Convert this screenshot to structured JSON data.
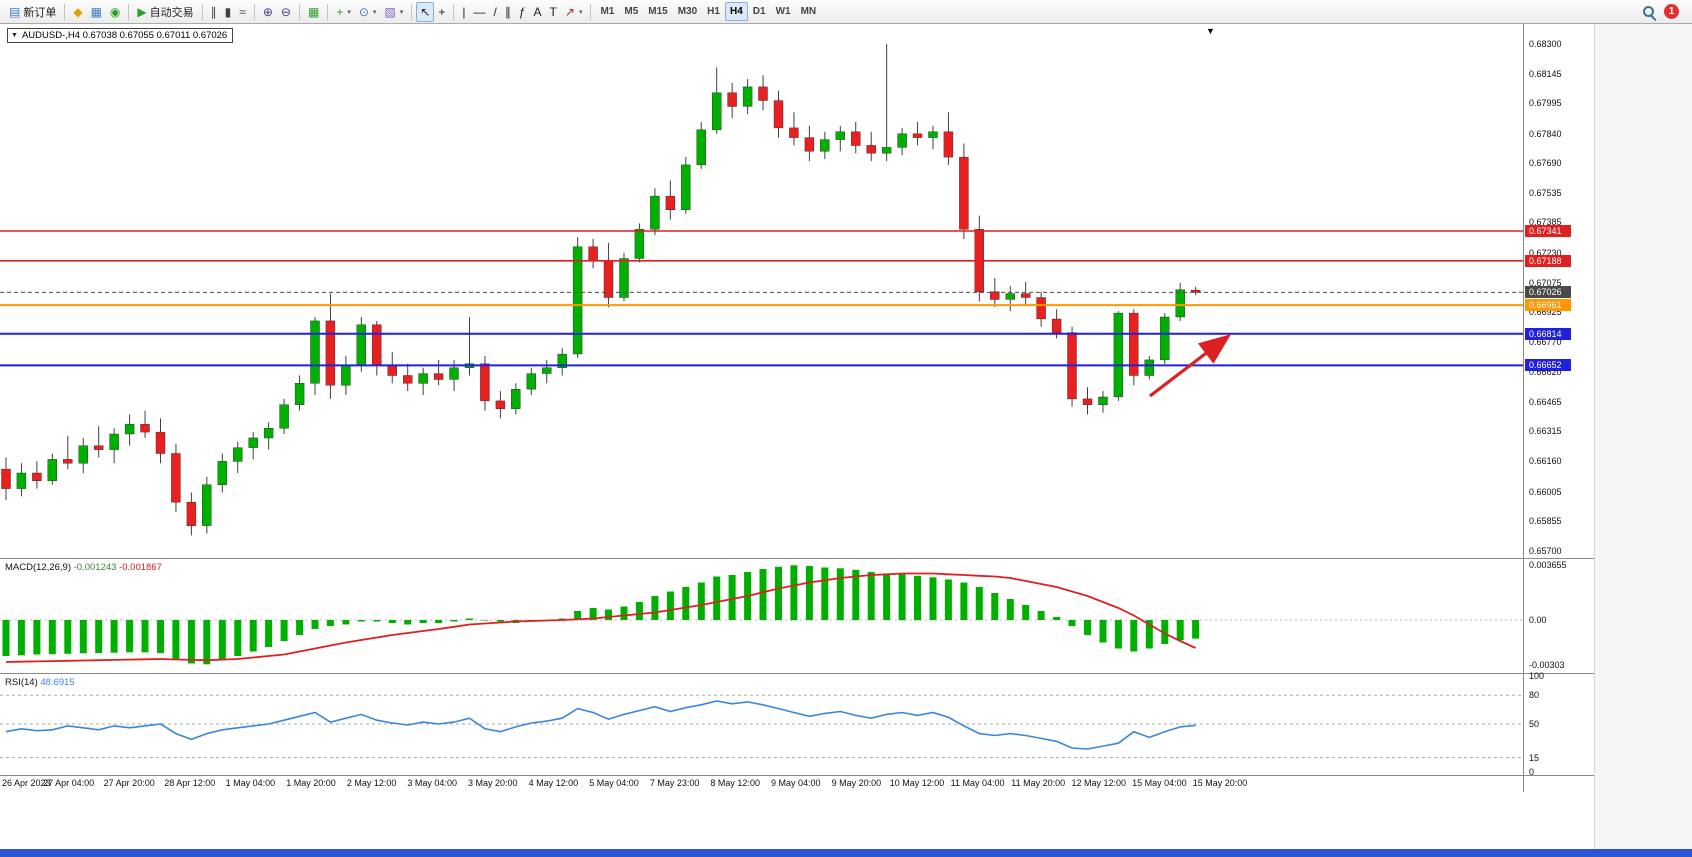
{
  "toolbar": {
    "groups": [
      {
        "items": [
          {
            "name": "new-order-button",
            "glyph": "▤",
            "glyph_color": "#3c78c8",
            "label": "新订单"
          }
        ]
      },
      {
        "items": [
          {
            "name": "profiles-button",
            "glyph": "◆",
            "glyph_color": "#dfa400"
          },
          {
            "name": "charts-grid-button",
            "glyph": "▦",
            "glyph_color": "#3c78c8"
          },
          {
            "name": "market-watch-button",
            "glyph": "◉",
            "glyph_color": "#2aa02a"
          }
        ]
      },
      {
        "items": [
          {
            "name": "autotrading-button",
            "glyph": "▶",
            "glyph_color": "#2aa02a",
            "label": "自动交易"
          }
        ]
      },
      {
        "items": [
          {
            "name": "bar-chart-button",
            "glyph": "∥",
            "glyph_color": "#404040"
          },
          {
            "name": "candlestick-button",
            "glyph": "▮",
            "glyph_color": "#404040"
          },
          {
            "name": "line-chart-button",
            "glyph": "≈",
            "glyph_color": "#404040"
          }
        ]
      },
      {
        "items": [
          {
            "name": "zoom-in-button",
            "glyph": "⊕",
            "glyph_color": "#40408a"
          },
          {
            "name": "zoom-out-button",
            "glyph": "⊖",
            "glyph_color": "#40408a"
          }
        ]
      },
      {
        "items": [
          {
            "name": "tile-windows-button",
            "glyph": "▦",
            "glyph_color": "#2aa02a"
          }
        ]
      },
      {
        "items": [
          {
            "name": "indicators-button",
            "glyph": "+",
            "glyph_color": "#2aa02a",
            "caret": true
          },
          {
            "name": "periods-button",
            "glyph": "⊙",
            "glyph_color": "#3c78c8",
            "caret": true
          },
          {
            "name": "templates-button",
            "glyph": "▧",
            "glyph_color": "#8060c0",
            "caret": true
          }
        ]
      },
      {
        "items": [
          {
            "name": "cursor-button",
            "glyph": "↖",
            "glyph_color": "#202020",
            "active": true
          },
          {
            "name": "crosshair-button",
            "glyph": "+",
            "glyph_color": "#202020"
          }
        ]
      },
      {
        "items": [
          {
            "name": "vertical-line-button",
            "glyph": "|",
            "glyph_color": "#202020"
          },
          {
            "name": "horizontal-line-button",
            "glyph": "—",
            "glyph_color": "#202020"
          },
          {
            "name": "trendline-button",
            "glyph": "/",
            "glyph_color": "#202020"
          },
          {
            "name": "channel-button",
            "glyph": "∥",
            "glyph_color": "#202020"
          },
          {
            "name": "fibonacci-button",
            "glyph": "ƒ",
            "glyph_color": "#202020"
          },
          {
            "name": "text-button",
            "glyph": "A",
            "glyph_color": "#202020"
          },
          {
            "name": "label-button",
            "glyph": "T",
            "glyph_color": "#202020"
          },
          {
            "name": "arrows-button",
            "glyph": "↗",
            "glyph_color": "#b02020",
            "caret": true
          }
        ]
      }
    ],
    "timeframes": [
      "M1",
      "M5",
      "M15",
      "M30",
      "H1",
      "H4",
      "D1",
      "W1",
      "MN"
    ],
    "active_timeframe": "H4",
    "notification_count": "1"
  },
  "chart": {
    "title": "AUDUSD-,H4 0.67038 0.67055 0.67011 0.67026",
    "shift_marker": "▼",
    "current_price": "0.67026",
    "price_axis_labels": [
      "0.68300",
      "0.68145",
      "0.67995",
      "0.67840",
      "0.67690",
      "0.67535",
      "0.67385",
      "0.67230",
      "0.67075",
      "0.66925",
      "0.66770",
      "0.66620",
      "0.66465",
      "0.66315",
      "0.66160",
      "0.66005",
      "0.65855",
      "0.65700"
    ],
    "hlines": [
      {
        "name": "resistance-line-1",
        "price": 0.67341,
        "label": "0.67341",
        "color": "#e02020",
        "width": 1.6
      },
      {
        "name": "resistance-line-2",
        "price": 0.67188,
        "label": "0.67188",
        "color": "#e02020",
        "width": 1.6
      },
      {
        "name": "current-price-line",
        "price": 0.67026,
        "label": "0.67026",
        "color": "#4a4a4a",
        "width": 1,
        "dash": "4 3"
      },
      {
        "name": "pivot-line-orange",
        "price": 0.66961,
        "label": "0.66961",
        "color": "#ff9800",
        "width": 2
      },
      {
        "name": "support-line-1",
        "price": 0.66814,
        "label": "0.66814",
        "color": "#2020dd",
        "width": 2
      },
      {
        "name": "support-line-2",
        "price": 0.66652,
        "label": "0.66652",
        "color": "#2020dd",
        "width": 2
      }
    ],
    "arrow_annotation": {
      "color": "#dd2020"
    },
    "time_axis_labels": [
      "26 Apr 2023",
      "27 Apr 04:00",
      "27 Apr 20:00",
      "28 Apr 12:00",
      "1 May 04:00",
      "1 May 20:00",
      "2 May 12:00",
      "3 May 04:00",
      "3 May 20:00",
      "4 May 12:00",
      "5 May 04:00",
      "7 May 23:00",
      "8 May 12:00",
      "9 May 04:00",
      "9 May 20:00",
      "10 May 12:00",
      "11 May 04:00",
      "11 May 20:00",
      "12 May 12:00",
      "15 May 04:00",
      "15 May 20:00"
    ]
  },
  "chart_data": [
    {
      "type": "candlestick",
      "symbol": "AUDUSD-",
      "timeframe": "H4",
      "open": "0.67038",
      "high": "0.67055",
      "low": "0.67011",
      "close": "0.67026",
      "price_range": {
        "top": 0.683,
        "bottom": 0.657
      },
      "colors": {
        "bull": "#00b000",
        "bear": "#e82020",
        "wick": "#404040"
      },
      "ohlc": [
        [
          0.6612,
          0.6618,
          0.6596,
          0.6602
        ],
        [
          0.6602,
          0.6615,
          0.6598,
          0.661
        ],
        [
          0.661,
          0.6616,
          0.6602,
          0.6606
        ],
        [
          0.6606,
          0.662,
          0.6604,
          0.6617
        ],
        [
          0.6617,
          0.6629,
          0.6612,
          0.6615
        ],
        [
          0.6615,
          0.6628,
          0.661,
          0.6624
        ],
        [
          0.6624,
          0.6634,
          0.6618,
          0.6622
        ],
        [
          0.6622,
          0.6633,
          0.6615,
          0.663
        ],
        [
          0.663,
          0.664,
          0.6624,
          0.6635
        ],
        [
          0.6635,
          0.6642,
          0.6628,
          0.6631
        ],
        [
          0.6631,
          0.6638,
          0.6615,
          0.662
        ],
        [
          0.662,
          0.6625,
          0.659,
          0.6595
        ],
        [
          0.6595,
          0.66,
          0.6578,
          0.6583
        ],
        [
          0.6583,
          0.6608,
          0.6579,
          0.6604
        ],
        [
          0.6604,
          0.662,
          0.66,
          0.6616
        ],
        [
          0.6616,
          0.6626,
          0.661,
          0.6623
        ],
        [
          0.6623,
          0.6631,
          0.6617,
          0.6628
        ],
        [
          0.6628,
          0.6636,
          0.6622,
          0.6633
        ],
        [
          0.6633,
          0.6648,
          0.663,
          0.6645
        ],
        [
          0.6645,
          0.666,
          0.6642,
          0.6656
        ],
        [
          0.6656,
          0.669,
          0.665,
          0.6688
        ],
        [
          0.6688,
          0.6702,
          0.6648,
          0.6655
        ],
        [
          0.6655,
          0.667,
          0.665,
          0.6665
        ],
        [
          0.6665,
          0.669,
          0.6662,
          0.6686
        ],
        [
          0.6686,
          0.6688,
          0.666,
          0.6665
        ],
        [
          0.6665,
          0.6672,
          0.6656,
          0.666
        ],
        [
          0.666,
          0.6666,
          0.6652,
          0.6656
        ],
        [
          0.6656,
          0.6664,
          0.665,
          0.6661
        ],
        [
          0.6661,
          0.6668,
          0.6655,
          0.6658
        ],
        [
          0.6658,
          0.6668,
          0.6652,
          0.6664
        ],
        [
          0.6664,
          0.669,
          0.666,
          0.6666
        ],
        [
          0.6666,
          0.667,
          0.6642,
          0.6647
        ],
        [
          0.6647,
          0.6652,
          0.6638,
          0.6643
        ],
        [
          0.6643,
          0.6656,
          0.664,
          0.6653
        ],
        [
          0.6653,
          0.6664,
          0.665,
          0.6661
        ],
        [
          0.6661,
          0.6668,
          0.6656,
          0.6664
        ],
        [
          0.6664,
          0.6674,
          0.666,
          0.6671
        ],
        [
          0.6671,
          0.6731,
          0.6669,
          0.6726
        ],
        [
          0.6726,
          0.673,
          0.6715,
          0.6719
        ],
        [
          0.6719,
          0.6728,
          0.6695,
          0.67
        ],
        [
          0.67,
          0.6723,
          0.6698,
          0.672
        ],
        [
          0.672,
          0.6738,
          0.6718,
          0.6735
        ],
        [
          0.6735,
          0.6756,
          0.6732,
          0.6752
        ],
        [
          0.6752,
          0.676,
          0.674,
          0.6745
        ],
        [
          0.6745,
          0.6772,
          0.6743,
          0.6768
        ],
        [
          0.6768,
          0.679,
          0.6766,
          0.6786
        ],
        [
          0.6786,
          0.6818,
          0.6784,
          0.6805
        ],
        [
          0.6805,
          0.681,
          0.6792,
          0.6798
        ],
        [
          0.6798,
          0.6812,
          0.6794,
          0.6808
        ],
        [
          0.6808,
          0.6814,
          0.6796,
          0.6801
        ],
        [
          0.6801,
          0.6806,
          0.6782,
          0.6787
        ],
        [
          0.6787,
          0.6795,
          0.6778,
          0.6782
        ],
        [
          0.6782,
          0.6788,
          0.677,
          0.6775
        ],
        [
          0.6775,
          0.6785,
          0.6771,
          0.6781
        ],
        [
          0.6781,
          0.6788,
          0.6775,
          0.6785
        ],
        [
          0.6785,
          0.679,
          0.6774,
          0.6778
        ],
        [
          0.6778,
          0.6785,
          0.677,
          0.6774
        ],
        [
          0.6774,
          0.683,
          0.677,
          0.6777
        ],
        [
          0.6777,
          0.6787,
          0.6773,
          0.6784
        ],
        [
          0.6784,
          0.679,
          0.6778,
          0.6782
        ],
        [
          0.6782,
          0.6788,
          0.6776,
          0.6785
        ],
        [
          0.6785,
          0.6795,
          0.6768,
          0.6772
        ],
        [
          0.6772,
          0.6779,
          0.673,
          0.6735
        ],
        [
          0.6735,
          0.6742,
          0.6698,
          0.6703
        ],
        [
          0.6703,
          0.671,
          0.6695,
          0.6699
        ],
        [
          0.6699,
          0.6706,
          0.6693,
          0.6702
        ],
        [
          0.6702,
          0.6708,
          0.6696,
          0.67
        ],
        [
          0.67,
          0.6703,
          0.6685,
          0.6689
        ],
        [
          0.6689,
          0.6694,
          0.6679,
          0.6682
        ],
        [
          0.6682,
          0.6685,
          0.6644,
          0.6648
        ],
        [
          0.6648,
          0.6654,
          0.664,
          0.6645
        ],
        [
          0.6645,
          0.6652,
          0.6641,
          0.6649
        ],
        [
          0.6649,
          0.6693,
          0.6647,
          0.6692
        ],
        [
          0.6692,
          0.6694,
          0.6655,
          0.666
        ],
        [
          0.666,
          0.667,
          0.6658,
          0.6668
        ],
        [
          0.6668,
          0.6692,
          0.6666,
          0.669
        ],
        [
          0.669,
          0.67075,
          0.6688,
          0.6704
        ],
        [
          0.67038,
          0.67055,
          0.67011,
          0.67026
        ]
      ]
    },
    {
      "type": "bar",
      "label": "MACD(12,26,9)",
      "value_main": "-0.001243",
      "value_signal": "-0.001867",
      "colors": {
        "histogram": "#00b000",
        "signal": "#e02020"
      },
      "axis_ticks": [
        {
          "label": "0.003655",
          "value": 0.003655
        },
        {
          "label": "0.00",
          "value": 0
        },
        {
          "label": "-0.00303",
          "value": -0.00303
        }
      ],
      "histogram": [
        -0.0024,
        -0.00235,
        -0.0023,
        -0.00228,
        -0.00225,
        -0.00222,
        -0.0022,
        -0.00218,
        -0.00215,
        -0.00215,
        -0.0022,
        -0.0026,
        -0.0029,
        -0.00295,
        -0.0027,
        -0.0024,
        -0.0021,
        -0.0018,
        -0.0014,
        -0.001,
        -0.0006,
        -0.0004,
        -0.0003,
        -0.0001,
        -0.0001,
        -0.0002,
        -0.0003,
        -0.0002,
        -0.0002,
        -0.0001,
        0.0001,
        0.0,
        -0.0001,
        -0.0002,
        -0.0001,
        0.0,
        0.0001,
        0.0006,
        0.0008,
        0.0007,
        0.0009,
        0.0012,
        0.0016,
        0.0019,
        0.0022,
        0.0025,
        0.0029,
        0.003,
        0.0032,
        0.0034,
        0.00355,
        0.00365,
        0.0036,
        0.0035,
        0.00345,
        0.00335,
        0.0032,
        0.0031,
        0.00305,
        0.00295,
        0.00285,
        0.0027,
        0.0025,
        0.0022,
        0.0018,
        0.0014,
        0.001,
        0.0006,
        0.0002,
        -0.0004,
        -0.001,
        -0.0015,
        -0.0019,
        -0.0021,
        -0.0019,
        -0.0016,
        -0.00135,
        -0.00124
      ],
      "signal": [
        -0.0028,
        -0.00278,
        -0.00276,
        -0.00274,
        -0.00272,
        -0.0027,
        -0.00268,
        -0.00266,
        -0.00264,
        -0.00262,
        -0.0026,
        -0.00263,
        -0.00266,
        -0.00268,
        -0.00264,
        -0.0026,
        -0.0025,
        -0.0024,
        -0.0023,
        -0.0021,
        -0.0019,
        -0.0017,
        -0.0015,
        -0.00133,
        -0.00117,
        -0.001,
        -0.00087,
        -0.00073,
        -0.0006,
        -0.00045,
        -0.0003,
        -0.00023,
        -0.00017,
        -0.0001,
        -7e-05,
        -3e-05,
        0.0,
        5e-05,
        0.0001,
        0.0002,
        0.0003,
        0.0004,
        0.0005,
        0.00067,
        0.00083,
        0.001,
        0.0012,
        0.0014,
        0.0016,
        0.00185,
        0.0021,
        0.0023,
        0.0025,
        0.00265,
        0.0028,
        0.0029,
        0.003,
        0.00305,
        0.0031,
        0.0031,
        0.0031,
        0.00305,
        0.003,
        0.00295,
        0.0029,
        0.0028,
        0.0026,
        0.0024,
        0.0022,
        0.0019,
        0.0016,
        0.0012,
        0.0008,
        0.0003,
        -0.0003,
        -0.0009,
        -0.0014,
        -0.00187
      ]
    },
    {
      "type": "line",
      "label": "RSI(14)",
      "value": "48.6915",
      "color": "#3a87d8",
      "levels": [
        80,
        50,
        15
      ],
      "axis_ticks": [
        {
          "label": "100",
          "value": 100
        },
        {
          "label": "80",
          "value": 80
        },
        {
          "label": "50",
          "value": 50
        },
        {
          "label": "15",
          "value": 15
        },
        {
          "label": "0",
          "value": 0
        }
      ],
      "values": [
        42,
        45,
        43,
        44,
        48,
        46,
        44,
        48,
        46,
        48,
        50,
        40,
        34,
        40,
        44,
        46,
        48,
        50,
        54,
        58,
        62,
        52,
        56,
        60,
        54,
        51,
        49,
        52,
        50,
        52,
        56,
        45,
        42,
        47,
        51,
        53,
        56,
        66,
        62,
        55,
        60,
        64,
        68,
        63,
        67,
        70,
        74,
        71,
        73,
        70,
        66,
        62,
        58,
        61,
        63,
        59,
        56,
        60,
        62,
        59,
        62,
        57,
        48,
        40,
        38,
        40,
        38,
        35,
        32,
        25,
        24,
        27,
        30,
        42,
        36,
        42,
        47,
        48.69
      ]
    }
  ]
}
